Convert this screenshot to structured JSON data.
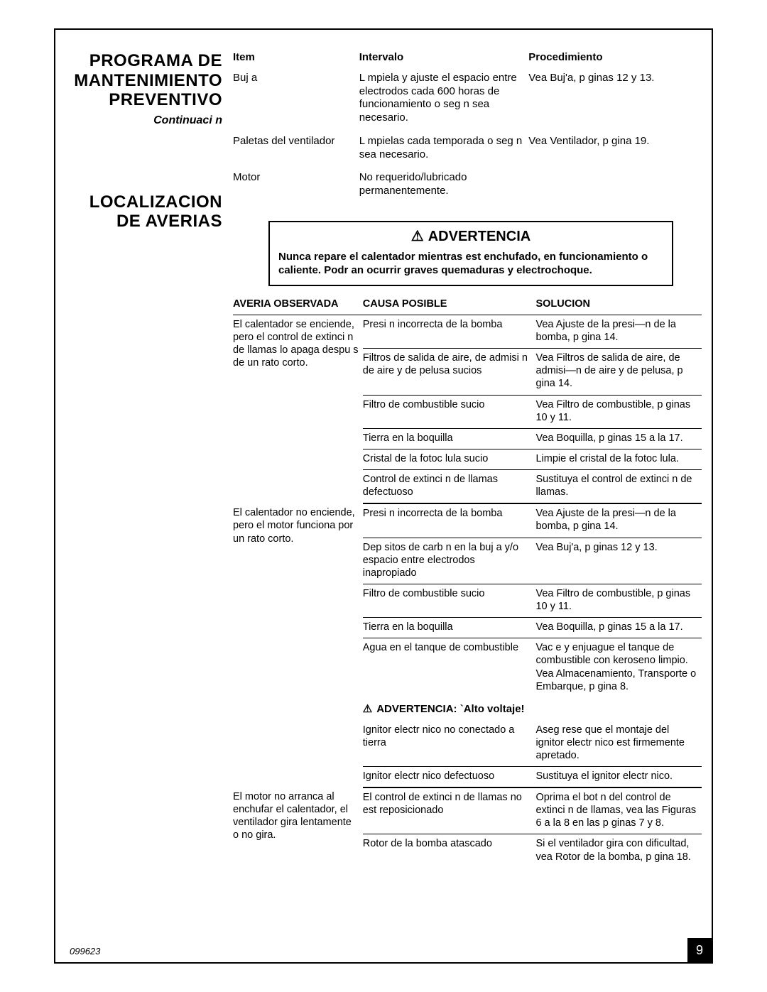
{
  "left": {
    "heading1_l1": "PROGRAMA DE",
    "heading1_l2": "MANTENIMIENTO",
    "heading1_l3": "PREVENTIVO",
    "continuation": "Continuaci n",
    "heading2_l1": "LOCALIZACION",
    "heading2_l2": "DE AVERIAS"
  },
  "maint": {
    "h_item": "Item",
    "h_int": "Intervalo",
    "h_proc": "Procedimiento",
    "r1_item": "Buj a",
    "r1_int": "L mpiela y ajuste el espacio entre electrodos cada 600 horas de funcionamiento o seg n sea necesario.",
    "r1_proc": "Vea Buj'a, p ginas 12 y 13.",
    "r2_item": "Paletas del ventilador",
    "r2_int": "L mpielas cada temporada o seg n sea necesario.",
    "r2_proc": "Vea Ventilador, p gina 19.",
    "r3_item": "Motor",
    "r3_int": "No requerido/lubricado permanentemente.",
    "r3_proc": ""
  },
  "warning": {
    "title": "ADVERTENCIA",
    "body": "Nunca repare el calentador mientras est  enchufado, en funcionamiento o caliente. Podr an ocurrir graves quemaduras y electrochoque."
  },
  "ts": {
    "h_obs": "AVERIA OBSERVADA",
    "h_caus": "CAUSA POSIBLE",
    "h_sol": "SOLUCION",
    "g1_obs": "El calentador se enciende, pero el control de extinci n de llamas lo apaga despu s de un rato corto.",
    "g1r1_c": "Presi n incorrecta de la bomba",
    "g1r1_s": "Vea Ajuste de la presi—n de la bomba, p gina 14.",
    "g1r2_c": "Filtros de salida de aire, de admisi n de aire y de pelusa sucios",
    "g1r2_s": "Vea Filtros de salida de aire, de admisi—n de aire y de pelusa, p gina 14.",
    "g1r3_c": "Filtro de combustible sucio",
    "g1r3_s": "Vea Filtro de combustible, p ginas 10 y 11.",
    "g1r4_c": "Tierra en la boquilla",
    "g1r4_s": "Vea Boquilla, p ginas 15 a la 17.",
    "g1r5_c": "Cristal de la fotoc lula sucio",
    "g1r5_s": "Limpie el cristal de la fotoc lula.",
    "g1r6_c": "Control de extinci n de llamas defectuoso",
    "g1r6_s": "Sustituya el control de extinci n de llamas.",
    "g2_obs": "El calentador no enciende, pero el motor funciona por un rato corto.",
    "g2r1_c": "Presi n incorrecta de la bomba",
    "g2r1_s": "Vea Ajuste de la presi—n de la bomba, p gina 14.",
    "g2r2_c": "Dep sitos de carb n en la buj a y/o espacio entre electrodos inapropiado",
    "g2r2_s": "Vea Buj'a, p ginas 12 y 13.",
    "g2r3_c": "Filtro de combustible sucio",
    "g2r3_s": "Vea Filtro de combustible, p ginas 10 y 11.",
    "g2r4_c": "Tierra en la boquilla",
    "g2r4_s": "Vea Boquilla, p ginas 15 a la 17.",
    "g2r5_c": "Agua en el tanque de combustible",
    "g2r5_s": "Vac e y enjuague el tanque de combustible con keroseno limpio. Vea Almacenamiento, Transporte o Embarque, p gina 8.",
    "hv_label": "ADVERTENCIA: `Alto voltaje!",
    "g2r6_c": "Ignitor electr nico no conectado a tierra",
    "g2r6_s": "Aseg rese que el montaje del ignitor electr nico est  firmemente apretado.",
    "g2r7_c": "Ignitor electr nico defectuoso",
    "g2r7_s": "Sustituya el ignitor electr nico.",
    "g3_obs": "El motor no arranca al enchufar el calentador, el ventilador gira lentamente o no gira.",
    "g3r1_c": "El control de extinci n de llamas no est  reposicionado",
    "g3r1_s": "Oprima el bot n del control de extinci n de llamas, vea las Figuras 6 a la 8 en las p ginas 7 y 8.",
    "g3r2_c": "Rotor de la bomba atascado",
    "g3r2_s": "Si el ventilador gira con dificultad, vea Rotor de la bomba, p gina 18."
  },
  "footer": {
    "code": "099623",
    "page": "9"
  }
}
